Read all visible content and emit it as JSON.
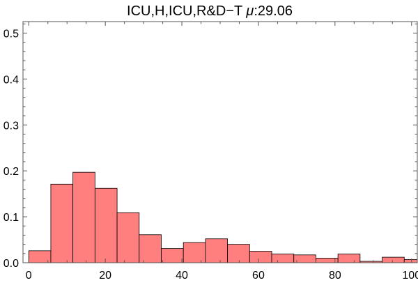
{
  "chart_data": {
    "type": "bar",
    "title": "ICU,H,ICU,R&D−T ",
    "title_mu": "μ",
    "title_value": ":29.06",
    "xlabel": "",
    "ylabel": "",
    "xlim": [
      -1.5,
      101.5
    ],
    "ylim": [
      0,
      0.525
    ],
    "x_ticks": [
      0,
      20,
      40,
      60,
      80,
      100
    ],
    "x_tick_labels": [
      "0",
      "20",
      "40",
      "60",
      "80",
      "100"
    ],
    "y_ticks": [
      0.0,
      0.1,
      0.2,
      0.3,
      0.4,
      0.5
    ],
    "y_tick_labels": [
      "0.0",
      "0.1",
      "0.2",
      "0.3",
      "0.4",
      "0.5"
    ],
    "bin_width": 5.77,
    "bins": [
      {
        "start": 0.0,
        "end": 5.77,
        "value": 0.026
      },
      {
        "start": 5.77,
        "end": 11.54,
        "value": 0.171
      },
      {
        "start": 11.54,
        "end": 17.31,
        "value": 0.197
      },
      {
        "start": 17.31,
        "end": 23.08,
        "value": 0.162
      },
      {
        "start": 23.08,
        "end": 28.85,
        "value": 0.109
      },
      {
        "start": 28.85,
        "end": 34.62,
        "value": 0.061
      },
      {
        "start": 34.62,
        "end": 40.39,
        "value": 0.031
      },
      {
        "start": 40.39,
        "end": 46.16,
        "value": 0.044
      },
      {
        "start": 46.16,
        "end": 51.93,
        "value": 0.052
      },
      {
        "start": 51.93,
        "end": 57.7,
        "value": 0.04
      },
      {
        "start": 57.7,
        "end": 63.47,
        "value": 0.025
      },
      {
        "start": 63.47,
        "end": 69.24,
        "value": 0.019
      },
      {
        "start": 69.24,
        "end": 75.01,
        "value": 0.017
      },
      {
        "start": 75.01,
        "end": 80.78,
        "value": 0.01
      },
      {
        "start": 80.78,
        "end": 86.55,
        "value": 0.019
      },
      {
        "start": 86.55,
        "end": 92.32,
        "value": 0.003
      },
      {
        "start": 92.32,
        "end": 98.09,
        "value": 0.012
      },
      {
        "start": 98.09,
        "end": 101.5,
        "value": 0.007
      }
    ],
    "grid": false,
    "legend": "none",
    "bar_color": "#ff7f7f",
    "bar_edge_color": "#000000",
    "axis_color": "#555555"
  }
}
